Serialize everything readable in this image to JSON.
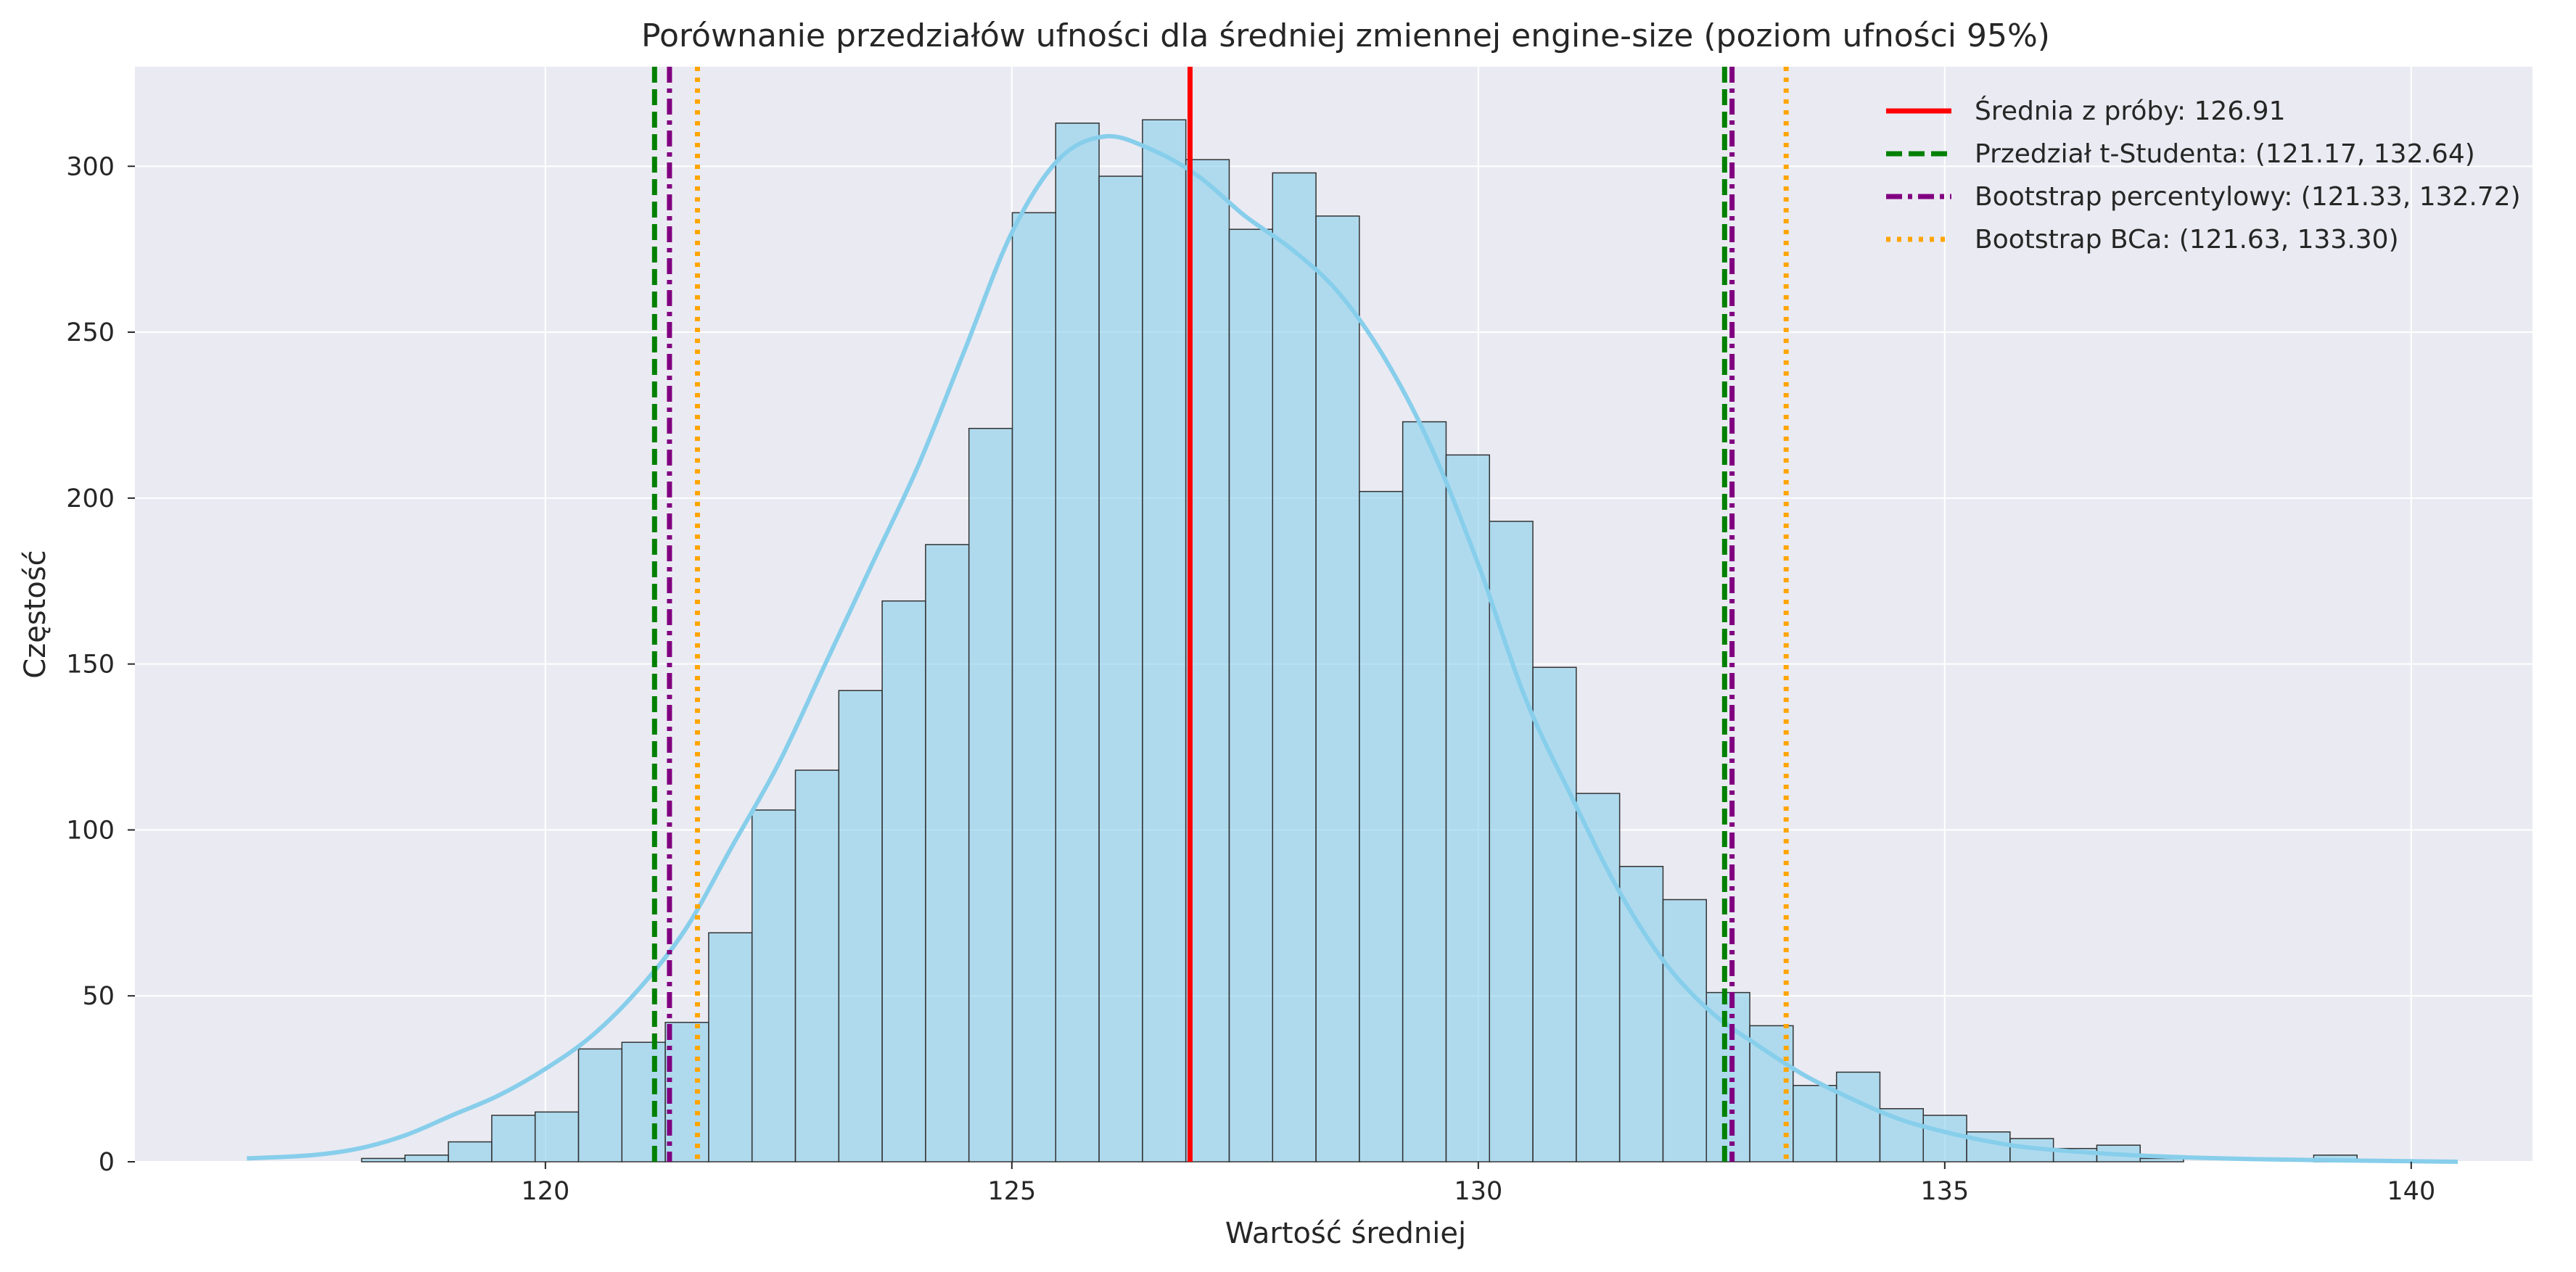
{
  "chart_data": {
    "type": "bar",
    "title": "Porównanie przedziałów ufności dla średniej zmiennej engine-size (poziom ufności 95%)",
    "xlabel": "Wartość średniej",
    "ylabel": "Częstość",
    "xlim": [
      115.6,
      141.3
    ],
    "ylim": [
      0,
      330
    ],
    "xticks": [
      120,
      125,
      130,
      135,
      140
    ],
    "yticks": [
      0,
      50,
      100,
      150,
      200,
      250,
      300
    ],
    "grid": true,
    "legend_position": "top-right",
    "histogram": {
      "bin_start": 117.1,
      "bin_width": 0.465,
      "counts": [
        0,
        0,
        1,
        2,
        6,
        14,
        15,
        34,
        36,
        42,
        69,
        106,
        118,
        142,
        169,
        186,
        221,
        286,
        313,
        297,
        314,
        302,
        281,
        298,
        285,
        202,
        223,
        213,
        193,
        149,
        111,
        89,
        79,
        51,
        41,
        23,
        27,
        16,
        14,
        9,
        7,
        4,
        5,
        1,
        0,
        0,
        0,
        2,
        0,
        0
      ],
      "fill_color": "#87CEEB",
      "edge_color": "#333333"
    },
    "kde": {
      "x": [
        116.8,
        117.5,
        118.0,
        118.5,
        119.0,
        119.5,
        120.0,
        120.5,
        121.0,
        121.5,
        122.0,
        122.5,
        123.0,
        123.5,
        124.0,
        124.5,
        125.0,
        125.5,
        126.0,
        126.5,
        127.0,
        127.5,
        128.0,
        128.5,
        129.0,
        129.5,
        130.0,
        130.5,
        131.0,
        131.5,
        132.0,
        132.5,
        133.0,
        133.5,
        134.0,
        134.5,
        135.0,
        135.5,
        136.0,
        137.0,
        138.0,
        139.0,
        140.5
      ],
      "y": [
        1,
        2,
        4,
        8,
        14,
        20,
        28,
        38,
        52,
        70,
        95,
        120,
        150,
        180,
        210,
        245,
        280,
        302,
        309,
        305,
        297,
        285,
        275,
        262,
        242,
        215,
        180,
        140,
        110,
        82,
        60,
        45,
        35,
        26,
        19,
        13,
        9,
        6,
        4,
        2,
        1,
        0.5,
        0
      ],
      "color": "#87CEEB"
    },
    "lines": [
      {
        "label": "Średnia z próby: 126.91",
        "x": [
          126.91
        ],
        "color": "#FF0000",
        "style": "solid"
      },
      {
        "label": "Przedział t-Studenta: (121.17, 132.64)",
        "x": [
          121.17,
          132.64
        ],
        "color": "#008000",
        "style": "dashed"
      },
      {
        "label": "Bootstrap percentylowy: (121.33, 132.72)",
        "x": [
          121.33,
          132.72
        ],
        "color": "#800080",
        "style": "dashdot"
      },
      {
        "label": "Bootstrap BCa: (121.63, 133.30)",
        "x": [
          121.63,
          133.3
        ],
        "color": "#FFA500",
        "style": "dotted"
      }
    ]
  }
}
